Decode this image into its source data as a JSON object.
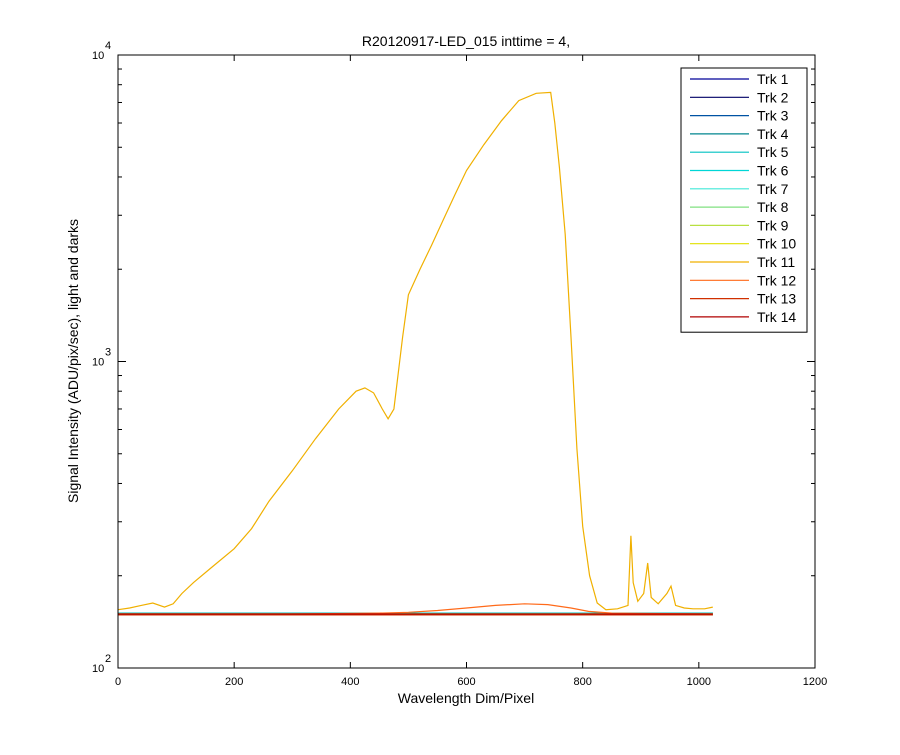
{
  "chart_data": {
    "type": "line",
    "title": "R20120917-LED_015 inttime = 4,",
    "xlabel": "Wavelength Dim/Pixel",
    "ylabel": "Signal Intensity (ADU/pix/sec), light and darks",
    "xlim": [
      0,
      1200
    ],
    "ylim": [
      100,
      10000
    ],
    "yscale": "log",
    "grid": false,
    "legend_position": "top-right",
    "x_ticks": [
      "0",
      "200",
      "400",
      "600",
      "800",
      "1000",
      "1200"
    ],
    "y_ticks": [
      {
        "base": "10",
        "exp": "2",
        "value": 100
      },
      {
        "base": "10",
        "exp": "3",
        "value": 1000
      },
      {
        "base": "10",
        "exp": "4",
        "value": 10000
      }
    ],
    "series": [
      {
        "name": "Trk 1",
        "color": "#000099",
        "x": [
          0,
          1024
        ],
        "y": [
          150,
          150
        ]
      },
      {
        "name": "Trk 2",
        "color": "#000066",
        "x": [
          0,
          1024
        ],
        "y": [
          149,
          149
        ]
      },
      {
        "name": "Trk 3",
        "color": "#0052a3",
        "x": [
          0,
          1024
        ],
        "y": [
          151,
          151
        ]
      },
      {
        "name": "Trk 4",
        "color": "#00858f",
        "x": [
          0,
          1024
        ],
        "y": [
          150,
          150
        ]
      },
      {
        "name": "Trk 5",
        "color": "#00c2c2",
        "x": [
          0,
          1024
        ],
        "y": [
          151,
          151
        ]
      },
      {
        "name": "Trk 6",
        "color": "#00d6d6",
        "x": [
          0,
          1024
        ],
        "y": [
          150,
          150
        ]
      },
      {
        "name": "Trk 7",
        "color": "#40e8d8",
        "x": [
          0,
          1024
        ],
        "y": [
          150,
          150
        ]
      },
      {
        "name": "Trk 8",
        "color": "#80e080",
        "x": [
          0,
          1024
        ],
        "y": [
          149,
          149
        ]
      },
      {
        "name": "Trk 9",
        "color": "#b8e040",
        "x": [
          0,
          1024
        ],
        "y": [
          150,
          150
        ]
      },
      {
        "name": "Trk 10",
        "color": "#e0e000",
        "x": [
          0,
          1024
        ],
        "y": [
          150,
          150
        ]
      },
      {
        "name": "Trk 11",
        "color": "#f0b000",
        "x": [
          0,
          20,
          40,
          60,
          80,
          95,
          110,
          130,
          160,
          200,
          230,
          260,
          300,
          340,
          380,
          410,
          425,
          440,
          455,
          465,
          475,
          490,
          500,
          520,
          540,
          560,
          580,
          600,
          630,
          660,
          690,
          720,
          745,
          752,
          760,
          770,
          780,
          790,
          800,
          812,
          825,
          840,
          860,
          878,
          883,
          887,
          895,
          905,
          912,
          918,
          930,
          945,
          952,
          960,
          975,
          990,
          1000,
          1010,
          1024
        ],
        "y": [
          155,
          157,
          160,
          163,
          158,
          162,
          175,
          190,
          212,
          245,
          285,
          350,
          440,
          560,
          700,
          800,
          820,
          790,
          700,
          650,
          700,
          1200,
          1650,
          2000,
          2400,
          2900,
          3500,
          4200,
          5100,
          6100,
          7100,
          7500,
          7550,
          6000,
          4300,
          2600,
          1200,
          520,
          290,
          200,
          163,
          155,
          156,
          160,
          270,
          190,
          165,
          175,
          220,
          170,
          162,
          175,
          185,
          160,
          157,
          156,
          156,
          156,
          158
        ]
      },
      {
        "name": "Trk 12",
        "color": "#ff6a1a",
        "x": [
          0,
          300,
          450,
          500,
          550,
          600,
          650,
          700,
          740,
          780,
          810,
          850,
          1024
        ],
        "y": [
          150,
          150,
          151,
          152,
          154,
          157,
          160,
          162,
          161,
          157,
          153,
          151,
          150
        ]
      },
      {
        "name": "Trk 13",
        "color": "#d03000",
        "x": [
          0,
          1024
        ],
        "y": [
          149,
          149
        ]
      },
      {
        "name": "Trk 14",
        "color": "#b00000",
        "x": [
          0,
          1024
        ],
        "y": [
          150,
          150
        ]
      }
    ]
  }
}
